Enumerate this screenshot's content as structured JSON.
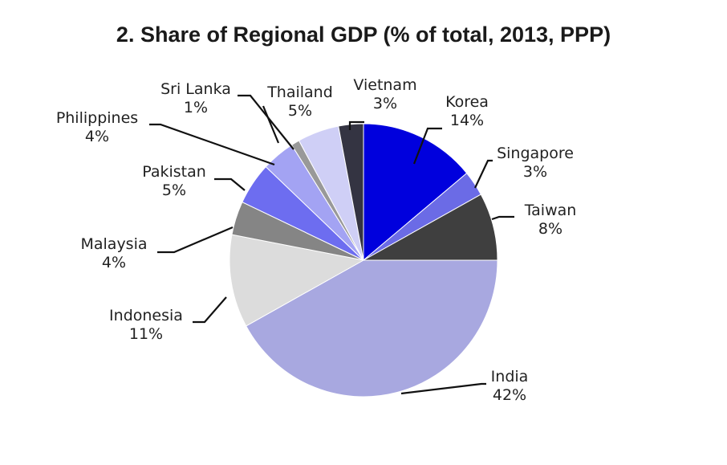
{
  "chart_data": {
    "type": "pie",
    "title": "2. Share of Regional GDP (% of total, 2013, PPP)",
    "start_angle_deg": 0,
    "direction": "clockwise",
    "slices": [
      {
        "name": "Korea",
        "value": 14,
        "value_label": "14%",
        "color": "#0000dd"
      },
      {
        "name": "Singapore",
        "value": 3,
        "value_label": "3%",
        "color": "#6b6be6"
      },
      {
        "name": "Taiwan",
        "value": 8,
        "value_label": "8%",
        "color": "#3f3f3f"
      },
      {
        "name": "India",
        "value": 42,
        "value_label": "42%",
        "color": "#a8a8e0"
      },
      {
        "name": "Indonesia",
        "value": 11,
        "value_label": "11%",
        "color": "#dcdcdc"
      },
      {
        "name": "Malaysia",
        "value": 4,
        "value_label": "4%",
        "color": "#858585"
      },
      {
        "name": "Pakistan",
        "value": 5,
        "value_label": "5%",
        "color": "#6d6df0"
      },
      {
        "name": "Philippines",
        "value": 4,
        "value_label": "4%",
        "color": "#a3a3f3"
      },
      {
        "name": "Sri Lanka",
        "value": 1,
        "value_label": "1%",
        "color": "#999999"
      },
      {
        "name": "Thailand",
        "value": 5,
        "value_label": "5%",
        "color": "#cfcff6"
      },
      {
        "name": "Vietnam",
        "value": 3,
        "value_label": "3%",
        "color": "#343442"
      }
    ]
  }
}
